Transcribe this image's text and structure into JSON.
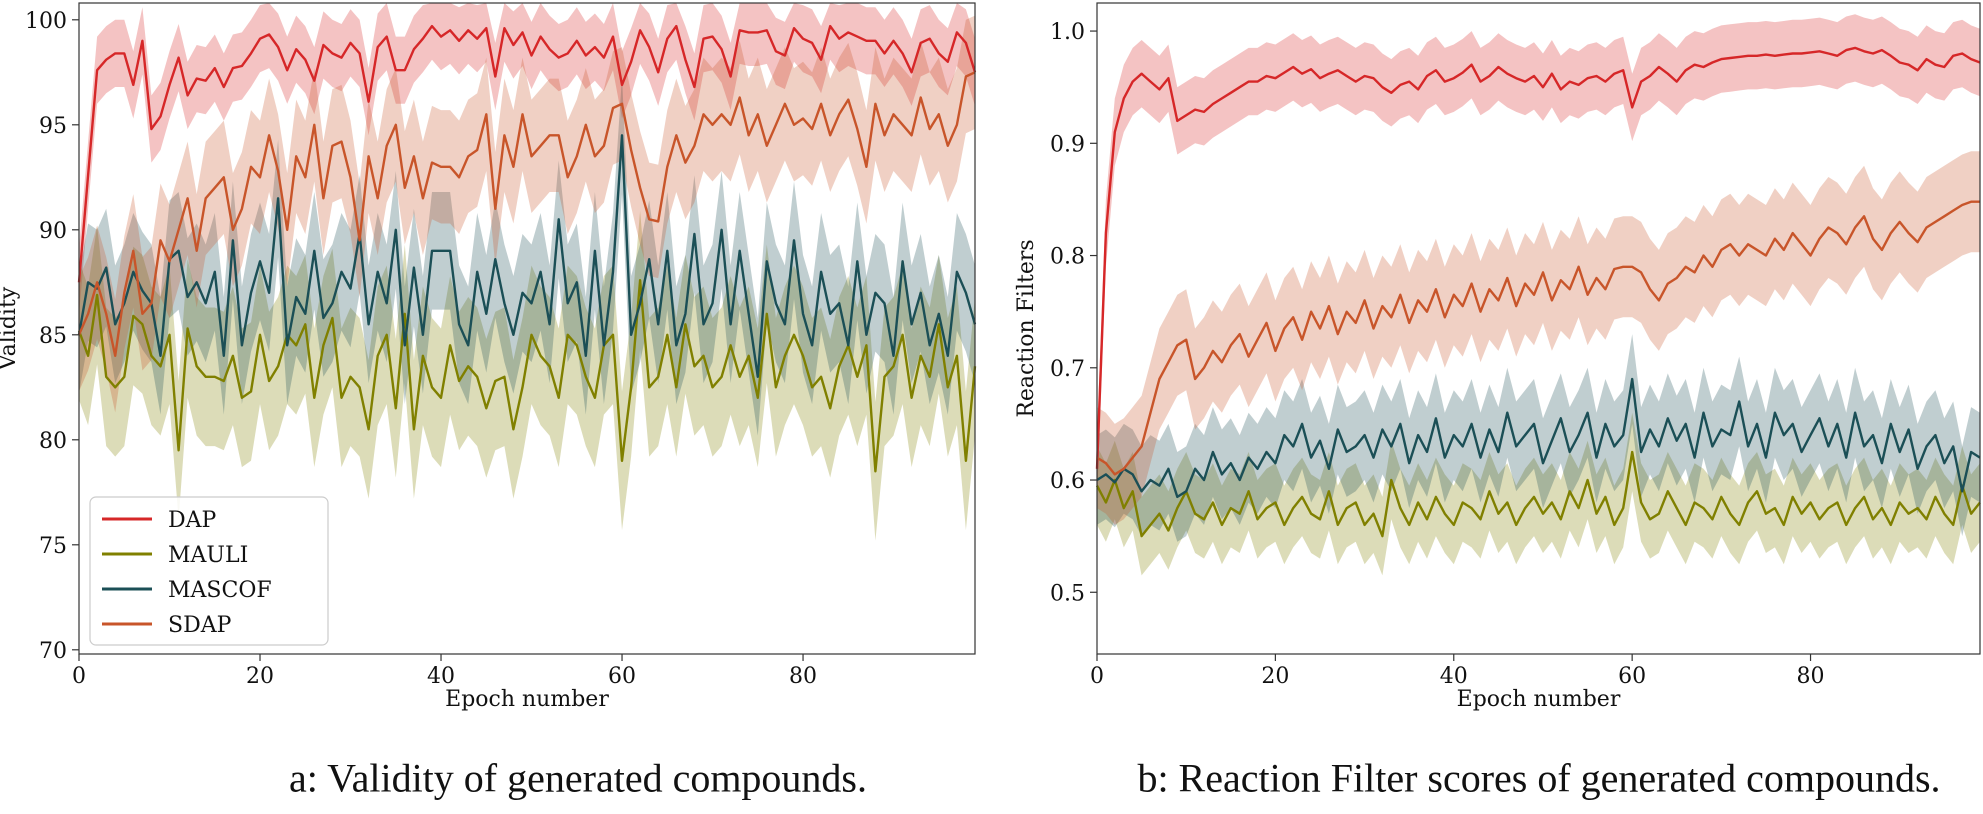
{
  "colors": {
    "DAP": "#d62728",
    "MAULI": "#808000",
    "MASCOF": "#1b4f56",
    "SDAP": "#c8552a",
    "axis": "#333333",
    "text": "#111111"
  },
  "chart_data": [
    {
      "type": "line",
      "ylabel": "Validity",
      "xlabel": "Epoch number",
      "xlim": [
        0,
        99
      ],
      "ylim": [
        69.8,
        100.8
      ],
      "xticks": [
        0,
        20,
        40,
        60,
        80
      ],
      "yticks": [
        70,
        75,
        80,
        85,
        90,
        95,
        100
      ],
      "grid": false,
      "legend_placement": "lower-left",
      "legend": [
        "DAP",
        "MAULI",
        "MASCOF",
        "SDAP"
      ],
      "caption": "a: Validity of generated compounds.",
      "x": [
        0,
        1,
        2,
        3,
        4,
        5,
        6,
        7,
        8,
        9,
        10,
        11,
        12,
        13,
        14,
        15,
        16,
        17,
        18,
        19,
        20,
        21,
        22,
        23,
        24,
        25,
        26,
        27,
        28,
        29,
        30,
        31,
        32,
        33,
        34,
        35,
        36,
        37,
        38,
        39,
        40,
        41,
        42,
        43,
        44,
        45,
        46,
        47,
        48,
        49,
        50,
        51,
        52,
        53,
        54,
        55,
        56,
        57,
        58,
        59,
        60,
        61,
        62,
        63,
        64,
        65,
        66,
        67,
        68,
        69,
        70,
        71,
        72,
        73,
        74,
        75,
        76,
        77,
        78,
        79,
        80,
        81,
        82,
        83,
        84,
        85,
        86,
        87,
        88,
        89,
        90,
        91,
        92,
        93,
        94,
        95,
        96,
        97,
        98,
        99
      ],
      "series": [
        {
          "name": "DAP",
          "band": 1.6,
          "values": [
            87.5,
            92.6,
            97.6,
            98.1,
            98.4,
            98.4,
            96.9,
            99.0,
            94.8,
            95.4,
            96.9,
            98.2,
            96.4,
            97.2,
            97.1,
            97.7,
            96.8,
            97.7,
            97.8,
            98.4,
            99.1,
            99.3,
            98.7,
            97.6,
            98.6,
            98.1,
            97.1,
            98.8,
            98.4,
            98.2,
            98.9,
            98.4,
            96.1,
            98.7,
            99.2,
            97.6,
            97.6,
            98.6,
            99.1,
            99.7,
            99.2,
            99.5,
            99.0,
            99.5,
            99.1,
            99.6,
            97.3,
            99.6,
            98.8,
            99.4,
            98.3,
            99.2,
            98.6,
            98.2,
            98.4,
            99.0,
            98.3,
            98.7,
            98.2,
            99.2,
            96.9,
            98.0,
            99.5,
            98.7,
            97.5,
            99.1,
            99.7,
            98.1,
            96.8,
            99.1,
            99.2,
            98.6,
            97.3,
            99.5,
            99.4,
            99.4,
            99.5,
            98.5,
            98.3,
            99.6,
            99.1,
            98.9,
            98.1,
            99.7,
            99.1,
            99.4,
            99.2,
            99.0,
            99.0,
            98.4,
            99.0,
            98.4,
            97.5,
            98.9,
            99.1,
            98.4,
            98.0,
            99.4,
            98.9,
            97.5
          ]
        },
        {
          "name": "MAULI",
          "band": 3.3,
          "values": [
            85.2,
            84.0,
            86.9,
            83.0,
            82.5,
            83.0,
            85.9,
            85.5,
            84.0,
            83.5,
            85.0,
            79.5,
            85.3,
            83.5,
            83.0,
            83.0,
            82.8,
            84.0,
            82.0,
            82.3,
            85.0,
            82.8,
            83.5,
            85.0,
            84.5,
            85.5,
            82.0,
            84.5,
            85.8,
            82.0,
            83.0,
            82.5,
            80.5,
            84.0,
            85.0,
            81.5,
            86.0,
            80.5,
            84.0,
            82.5,
            82.0,
            84.5,
            82.8,
            83.5,
            83.0,
            81.5,
            82.8,
            83.0,
            80.5,
            82.5,
            85.0,
            84.0,
            83.5,
            82.0,
            85.0,
            84.5,
            83.0,
            82.0,
            84.5,
            85.0,
            79.0,
            82.5,
            87.6,
            82.5,
            83.0,
            85.0,
            82.5,
            85.5,
            83.5,
            84.0,
            82.5,
            83.0,
            84.5,
            83.0,
            84.0,
            82.0,
            86.0,
            82.5,
            84.0,
            85.0,
            84.0,
            82.5,
            83.0,
            81.5,
            83.5,
            84.5,
            83.0,
            84.5,
            78.5,
            83.0,
            83.5,
            85.0,
            82.0,
            84.0,
            83.0,
            85.5,
            82.5,
            84.0,
            79.0,
            83.5
          ]
        },
        {
          "name": "MASCOF",
          "band": 2.8,
          "values": [
            85.0,
            87.5,
            87.2,
            88.2,
            85.5,
            86.5,
            88.0,
            87.1,
            86.5,
            84.0,
            88.6,
            89.0,
            86.8,
            87.5,
            86.5,
            88.0,
            84.0,
            89.5,
            84.5,
            87.0,
            88.5,
            87.0,
            91.5,
            84.5,
            86.8,
            86.0,
            89.0,
            85.8,
            86.5,
            88.0,
            87.2,
            89.8,
            85.5,
            88.0,
            86.5,
            90.0,
            84.5,
            88.2,
            85.0,
            89.0,
            89.0,
            89.0,
            85.5,
            84.5,
            88.0,
            86.0,
            88.6,
            86.5,
            85.0,
            87.0,
            86.5,
            88.0,
            85.5,
            90.5,
            86.5,
            87.5,
            84.0,
            89.0,
            84.5,
            88.0,
            94.5,
            85.0,
            86.5,
            88.6,
            85.5,
            89.0,
            84.5,
            86.0,
            89.8,
            85.5,
            86.5,
            90.0,
            85.5,
            89.0,
            86.0,
            83.0,
            88.5,
            86.5,
            85.5,
            89.5,
            86.0,
            84.5,
            88.0,
            86.0,
            86.5,
            84.5,
            88.5,
            85.0,
            87.0,
            86.5,
            84.0,
            88.5,
            85.5,
            87.0,
            84.5,
            86.0,
            84.0,
            88.0,
            87.0,
            85.5
          ]
        },
        {
          "name": "SDAP",
          "band": 2.7,
          "values": [
            85.0,
            86.0,
            87.5,
            86.0,
            84.0,
            87.0,
            89.0,
            86.0,
            86.5,
            89.5,
            88.5,
            90.0,
            91.5,
            89.0,
            91.5,
            92.0,
            92.5,
            90.0,
            91.0,
            93.0,
            92.5,
            94.5,
            92.8,
            90.0,
            93.5,
            92.5,
            95.0,
            91.5,
            94.0,
            94.2,
            92.5,
            89.5,
            93.5,
            91.5,
            94.0,
            95.0,
            92.0,
            93.5,
            91.5,
            93.2,
            93.0,
            93.0,
            92.5,
            93.5,
            93.8,
            95.5,
            91.0,
            94.5,
            93.0,
            95.5,
            93.5,
            94.0,
            94.5,
            94.5,
            92.5,
            93.5,
            95.0,
            93.5,
            94.0,
            95.8,
            96.0,
            93.8,
            92.0,
            90.5,
            90.4,
            93.0,
            94.5,
            93.2,
            94.0,
            95.5,
            95.0,
            95.5,
            95.0,
            96.3,
            94.5,
            95.5,
            94.0,
            95.0,
            96.0,
            95.0,
            95.3,
            94.8,
            96.0,
            94.5,
            95.5,
            96.2,
            94.8,
            93.0,
            96.0,
            94.5,
            95.5,
            95.0,
            94.5,
            96.3,
            94.8,
            95.5,
            94.0,
            95.0,
            97.3,
            97.5
          ]
        }
      ]
    },
    {
      "type": "line",
      "ylabel": "Reaction Filters",
      "xlabel": "Epoch number",
      "xlim": [
        0,
        99
      ],
      "ylim": [
        0.445,
        1.025
      ],
      "xticks": [
        0,
        20,
        40,
        60,
        80
      ],
      "yticks": [
        "0.5",
        "0.6",
        "0.7",
        "0.8",
        "0.9",
        "1.0"
      ],
      "grid": false,
      "caption": "b: Reaction Filter scores of generated compounds.",
      "x": [
        0,
        1,
        2,
        3,
        4,
        5,
        6,
        7,
        8,
        9,
        10,
        11,
        12,
        13,
        14,
        15,
        16,
        17,
        18,
        19,
        20,
        21,
        22,
        23,
        24,
        25,
        26,
        27,
        28,
        29,
        30,
        31,
        32,
        33,
        34,
        35,
        36,
        37,
        38,
        39,
        40,
        41,
        42,
        43,
        44,
        45,
        46,
        47,
        48,
        49,
        50,
        51,
        52,
        53,
        54,
        55,
        56,
        57,
        58,
        59,
        60,
        61,
        62,
        63,
        64,
        65,
        66,
        67,
        68,
        69,
        70,
        71,
        72,
        73,
        74,
        75,
        76,
        77,
        78,
        79,
        80,
        81,
        82,
        83,
        84,
        85,
        86,
        87,
        88,
        89,
        90,
        91,
        92,
        93,
        94,
        95,
        96,
        97,
        98,
        99
      ],
      "series": [
        {
          "name": "DAP",
          "band": 0.03,
          "values": [
            0.61,
            0.82,
            0.91,
            0.94,
            0.955,
            0.962,
            0.955,
            0.948,
            0.958,
            0.92,
            0.925,
            0.93,
            0.928,
            0.935,
            0.94,
            0.945,
            0.95,
            0.955,
            0.955,
            0.96,
            0.958,
            0.963,
            0.968,
            0.962,
            0.966,
            0.958,
            0.962,
            0.965,
            0.96,
            0.955,
            0.96,
            0.958,
            0.95,
            0.945,
            0.952,
            0.955,
            0.948,
            0.96,
            0.965,
            0.955,
            0.958,
            0.963,
            0.97,
            0.955,
            0.96,
            0.968,
            0.962,
            0.958,
            0.955,
            0.96,
            0.95,
            0.962,
            0.948,
            0.955,
            0.952,
            0.958,
            0.96,
            0.955,
            0.962,
            0.965,
            0.932,
            0.955,
            0.96,
            0.968,
            0.962,
            0.955,
            0.965,
            0.97,
            0.968,
            0.972,
            0.975,
            0.976,
            0.977,
            0.978,
            0.978,
            0.979,
            0.978,
            0.979,
            0.98,
            0.98,
            0.981,
            0.982,
            0.98,
            0.978,
            0.983,
            0.985,
            0.982,
            0.98,
            0.983,
            0.978,
            0.972,
            0.97,
            0.965,
            0.975,
            0.97,
            0.968,
            0.978,
            0.98,
            0.975,
            0.972
          ]
        },
        {
          "name": "MAULI",
          "band": 0.035,
          "values": [
            0.595,
            0.58,
            0.6,
            0.575,
            0.59,
            0.55,
            0.56,
            0.57,
            0.555,
            0.575,
            0.59,
            0.57,
            0.565,
            0.58,
            0.56,
            0.575,
            0.57,
            0.59,
            0.565,
            0.575,
            0.58,
            0.56,
            0.575,
            0.585,
            0.57,
            0.565,
            0.59,
            0.56,
            0.575,
            0.58,
            0.56,
            0.57,
            0.55,
            0.6,
            0.575,
            0.56,
            0.58,
            0.565,
            0.585,
            0.57,
            0.56,
            0.58,
            0.575,
            0.565,
            0.59,
            0.57,
            0.58,
            0.56,
            0.575,
            0.585,
            0.57,
            0.58,
            0.565,
            0.59,
            0.575,
            0.6,
            0.57,
            0.585,
            0.56,
            0.575,
            0.625,
            0.58,
            0.565,
            0.57,
            0.59,
            0.575,
            0.56,
            0.58,
            0.575,
            0.565,
            0.585,
            0.57,
            0.56,
            0.58,
            0.59,
            0.57,
            0.575,
            0.56,
            0.585,
            0.57,
            0.58,
            0.565,
            0.575,
            0.58,
            0.56,
            0.575,
            0.585,
            0.565,
            0.575,
            0.56,
            0.58,
            0.57,
            0.575,
            0.565,
            0.585,
            0.57,
            0.56,
            0.595,
            0.57,
            0.58
          ]
        },
        {
          "name": "MASCOF",
          "band": 0.04,
          "values": [
            0.6,
            0.605,
            0.598,
            0.61,
            0.605,
            0.59,
            0.6,
            0.595,
            0.61,
            0.585,
            0.59,
            0.61,
            0.6,
            0.625,
            0.605,
            0.615,
            0.6,
            0.62,
            0.61,
            0.625,
            0.615,
            0.64,
            0.63,
            0.65,
            0.62,
            0.635,
            0.61,
            0.645,
            0.625,
            0.63,
            0.64,
            0.62,
            0.645,
            0.63,
            0.65,
            0.615,
            0.64,
            0.625,
            0.655,
            0.62,
            0.64,
            0.63,
            0.65,
            0.62,
            0.645,
            0.625,
            0.66,
            0.63,
            0.64,
            0.65,
            0.615,
            0.635,
            0.655,
            0.625,
            0.64,
            0.66,
            0.62,
            0.65,
            0.63,
            0.64,
            0.69,
            0.625,
            0.645,
            0.63,
            0.655,
            0.635,
            0.65,
            0.62,
            0.66,
            0.63,
            0.645,
            0.64,
            0.67,
            0.63,
            0.65,
            0.62,
            0.66,
            0.64,
            0.65,
            0.625,
            0.64,
            0.655,
            0.63,
            0.65,
            0.62,
            0.66,
            0.63,
            0.64,
            0.615,
            0.65,
            0.625,
            0.645,
            0.61,
            0.63,
            0.64,
            0.615,
            0.63,
            0.59,
            0.625,
            0.62
          ]
        },
        {
          "name": "SDAP",
          "band": 0.045,
          "values": [
            0.62,
            0.615,
            0.605,
            0.61,
            0.62,
            0.63,
            0.66,
            0.69,
            0.705,
            0.72,
            0.725,
            0.69,
            0.7,
            0.715,
            0.705,
            0.72,
            0.73,
            0.71,
            0.725,
            0.74,
            0.715,
            0.735,
            0.745,
            0.725,
            0.75,
            0.735,
            0.755,
            0.73,
            0.75,
            0.74,
            0.76,
            0.735,
            0.755,
            0.745,
            0.765,
            0.74,
            0.76,
            0.75,
            0.77,
            0.745,
            0.765,
            0.755,
            0.775,
            0.75,
            0.77,
            0.76,
            0.78,
            0.755,
            0.775,
            0.765,
            0.785,
            0.76,
            0.778,
            0.77,
            0.79,
            0.765,
            0.78,
            0.77,
            0.788,
            0.79,
            0.79,
            0.785,
            0.77,
            0.76,
            0.775,
            0.78,
            0.79,
            0.785,
            0.8,
            0.79,
            0.805,
            0.81,
            0.8,
            0.81,
            0.805,
            0.8,
            0.815,
            0.805,
            0.82,
            0.81,
            0.8,
            0.815,
            0.825,
            0.82,
            0.81,
            0.825,
            0.835,
            0.815,
            0.805,
            0.82,
            0.83,
            0.82,
            0.812,
            0.825,
            0.83,
            0.835,
            0.84,
            0.845,
            0.848,
            0.848
          ]
        }
      ]
    }
  ]
}
